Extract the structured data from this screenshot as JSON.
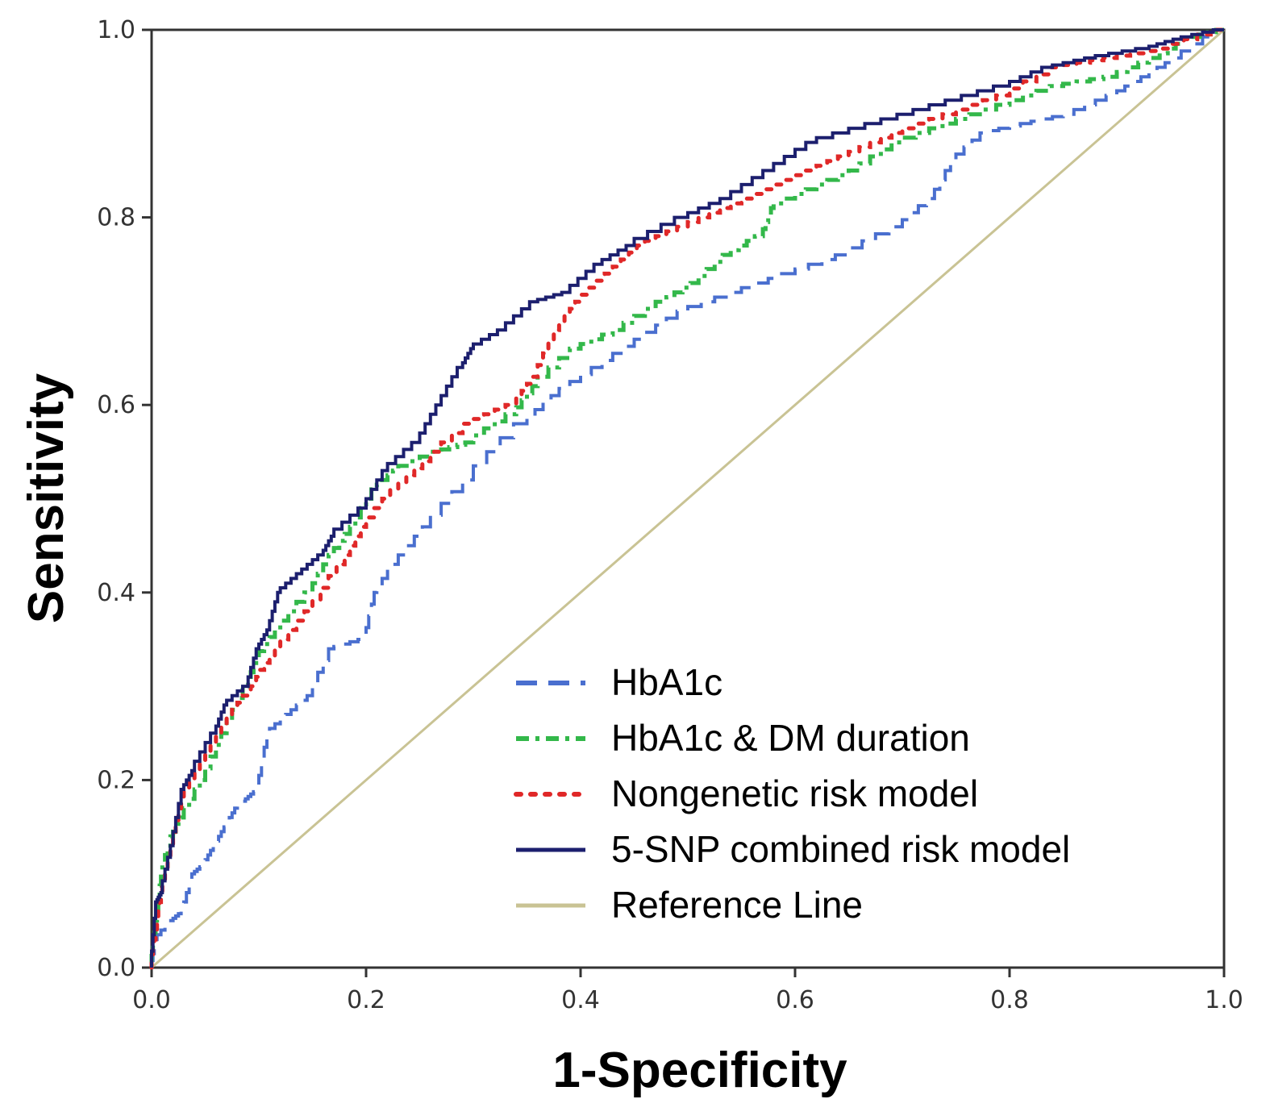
{
  "chart_data": {
    "type": "line",
    "title": "",
    "xlabel": "1-Specificity",
    "ylabel": "Sensitivity",
    "xlim": [
      0,
      1
    ],
    "ylim": [
      0,
      1
    ],
    "x_ticks": [
      "0.0",
      "0.2",
      "0.4",
      "0.6",
      "0.8",
      "1.0"
    ],
    "y_ticks": [
      "0.0",
      "0.2",
      "0.4",
      "0.6",
      "0.8",
      "1.0"
    ],
    "grid": false,
    "legend_position": "bottom-right",
    "series": [
      {
        "name": "HbA1c",
        "color": "#4a6fcf",
        "dash": "dashed",
        "points": [
          [
            0,
            0
          ],
          [
            0.005,
            0.03
          ],
          [
            0.02,
            0.05
          ],
          [
            0.03,
            0.06
          ],
          [
            0.04,
            0.1
          ],
          [
            0.05,
            0.11
          ],
          [
            0.06,
            0.13
          ],
          [
            0.07,
            0.15
          ],
          [
            0.08,
            0.17
          ],
          [
            0.09,
            0.18
          ],
          [
            0.1,
            0.19
          ],
          [
            0.11,
            0.25
          ],
          [
            0.13,
            0.27
          ],
          [
            0.15,
            0.29
          ],
          [
            0.17,
            0.34
          ],
          [
            0.2,
            0.35
          ],
          [
            0.21,
            0.4
          ],
          [
            0.23,
            0.43
          ],
          [
            0.26,
            0.47
          ],
          [
            0.3,
            0.52
          ],
          [
            0.35,
            0.58
          ],
          [
            0.38,
            0.61
          ],
          [
            0.42,
            0.64
          ],
          [
            0.46,
            0.67
          ],
          [
            0.5,
            0.7
          ],
          [
            0.55,
            0.72
          ],
          [
            0.6,
            0.74
          ],
          [
            0.65,
            0.76
          ],
          [
            0.7,
            0.79
          ],
          [
            0.73,
            0.82
          ],
          [
            0.75,
            0.86
          ],
          [
            0.78,
            0.89
          ],
          [
            0.82,
            0.9
          ],
          [
            0.86,
            0.91
          ],
          [
            0.9,
            0.93
          ],
          [
            0.93,
            0.95
          ],
          [
            0.96,
            0.97
          ],
          [
            1,
            1
          ]
        ]
      },
      {
        "name": "HbA1c & DM duration",
        "color": "#33b84a",
        "dash": "dash-dot",
        "points": [
          [
            0,
            0
          ],
          [
            0.005,
            0.05
          ],
          [
            0.01,
            0.1
          ],
          [
            0.02,
            0.14
          ],
          [
            0.03,
            0.16
          ],
          [
            0.05,
            0.2
          ],
          [
            0.07,
            0.25
          ],
          [
            0.09,
            0.3
          ],
          [
            0.1,
            0.33
          ],
          [
            0.12,
            0.36
          ],
          [
            0.15,
            0.4
          ],
          [
            0.17,
            0.44
          ],
          [
            0.19,
            0.47
          ],
          [
            0.21,
            0.51
          ],
          [
            0.23,
            0.53
          ],
          [
            0.27,
            0.55
          ],
          [
            0.3,
            0.56
          ],
          [
            0.34,
            0.59
          ],
          [
            0.36,
            0.62
          ],
          [
            0.4,
            0.66
          ],
          [
            0.44,
            0.68
          ],
          [
            0.48,
            0.71
          ],
          [
            0.51,
            0.73
          ],
          [
            0.54,
            0.76
          ],
          [
            0.57,
            0.78
          ],
          [
            0.58,
            0.81
          ],
          [
            0.62,
            0.83
          ],
          [
            0.66,
            0.85
          ],
          [
            0.7,
            0.88
          ],
          [
            0.75,
            0.9
          ],
          [
            0.8,
            0.92
          ],
          [
            0.85,
            0.94
          ],
          [
            0.9,
            0.95
          ],
          [
            0.94,
            0.97
          ],
          [
            0.97,
            0.99
          ],
          [
            1,
            1
          ]
        ]
      },
      {
        "name": "Nongenetic risk model",
        "color": "#e02828",
        "dash": "dotted",
        "points": [
          [
            0,
            0
          ],
          [
            0.005,
            0.04
          ],
          [
            0.01,
            0.08
          ],
          [
            0.02,
            0.13
          ],
          [
            0.03,
            0.18
          ],
          [
            0.05,
            0.22
          ],
          [
            0.07,
            0.26
          ],
          [
            0.09,
            0.29
          ],
          [
            0.1,
            0.31
          ],
          [
            0.12,
            0.34
          ],
          [
            0.15,
            0.38
          ],
          [
            0.18,
            0.43
          ],
          [
            0.2,
            0.47
          ],
          [
            0.23,
            0.51
          ],
          [
            0.26,
            0.54
          ],
          [
            0.3,
            0.58
          ],
          [
            0.34,
            0.6
          ],
          [
            0.36,
            0.63
          ],
          [
            0.38,
            0.68
          ],
          [
            0.4,
            0.71
          ],
          [
            0.43,
            0.74
          ],
          [
            0.46,
            0.77
          ],
          [
            0.5,
            0.79
          ],
          [
            0.54,
            0.81
          ],
          [
            0.58,
            0.83
          ],
          [
            0.62,
            0.85
          ],
          [
            0.66,
            0.87
          ],
          [
            0.7,
            0.89
          ],
          [
            0.75,
            0.91
          ],
          [
            0.8,
            0.93
          ],
          [
            0.85,
            0.96
          ],
          [
            0.9,
            0.97
          ],
          [
            0.95,
            0.98
          ],
          [
            1,
            1
          ]
        ]
      },
      {
        "name": "5-SNP combined risk model",
        "color": "#1c1f6e",
        "dash": "solid",
        "points": [
          [
            0,
            0
          ],
          [
            0.005,
            0.07
          ],
          [
            0.01,
            0.08
          ],
          [
            0.02,
            0.13
          ],
          [
            0.03,
            0.19
          ],
          [
            0.04,
            0.21
          ],
          [
            0.06,
            0.25
          ],
          [
            0.07,
            0.28
          ],
          [
            0.09,
            0.3
          ],
          [
            0.1,
            0.34
          ],
          [
            0.11,
            0.36
          ],
          [
            0.12,
            0.4
          ],
          [
            0.14,
            0.42
          ],
          [
            0.16,
            0.44
          ],
          [
            0.17,
            0.46
          ],
          [
            0.2,
            0.49
          ],
          [
            0.22,
            0.53
          ],
          [
            0.25,
            0.56
          ],
          [
            0.27,
            0.6
          ],
          [
            0.29,
            0.64
          ],
          [
            0.3,
            0.66
          ],
          [
            0.33,
            0.68
          ],
          [
            0.36,
            0.71
          ],
          [
            0.39,
            0.72
          ],
          [
            0.42,
            0.75
          ],
          [
            0.45,
            0.77
          ],
          [
            0.5,
            0.8
          ],
          [
            0.54,
            0.82
          ],
          [
            0.58,
            0.85
          ],
          [
            0.62,
            0.88
          ],
          [
            0.68,
            0.9
          ],
          [
            0.74,
            0.92
          ],
          [
            0.8,
            0.94
          ],
          [
            0.84,
            0.96
          ],
          [
            0.88,
            0.97
          ],
          [
            0.93,
            0.98
          ],
          [
            0.96,
            0.99
          ],
          [
            1,
            1
          ]
        ]
      },
      {
        "name": "Reference Line",
        "color": "#c9c394",
        "dash": "solid",
        "points": [
          [
            0,
            0
          ],
          [
            1,
            1
          ]
        ]
      }
    ]
  }
}
